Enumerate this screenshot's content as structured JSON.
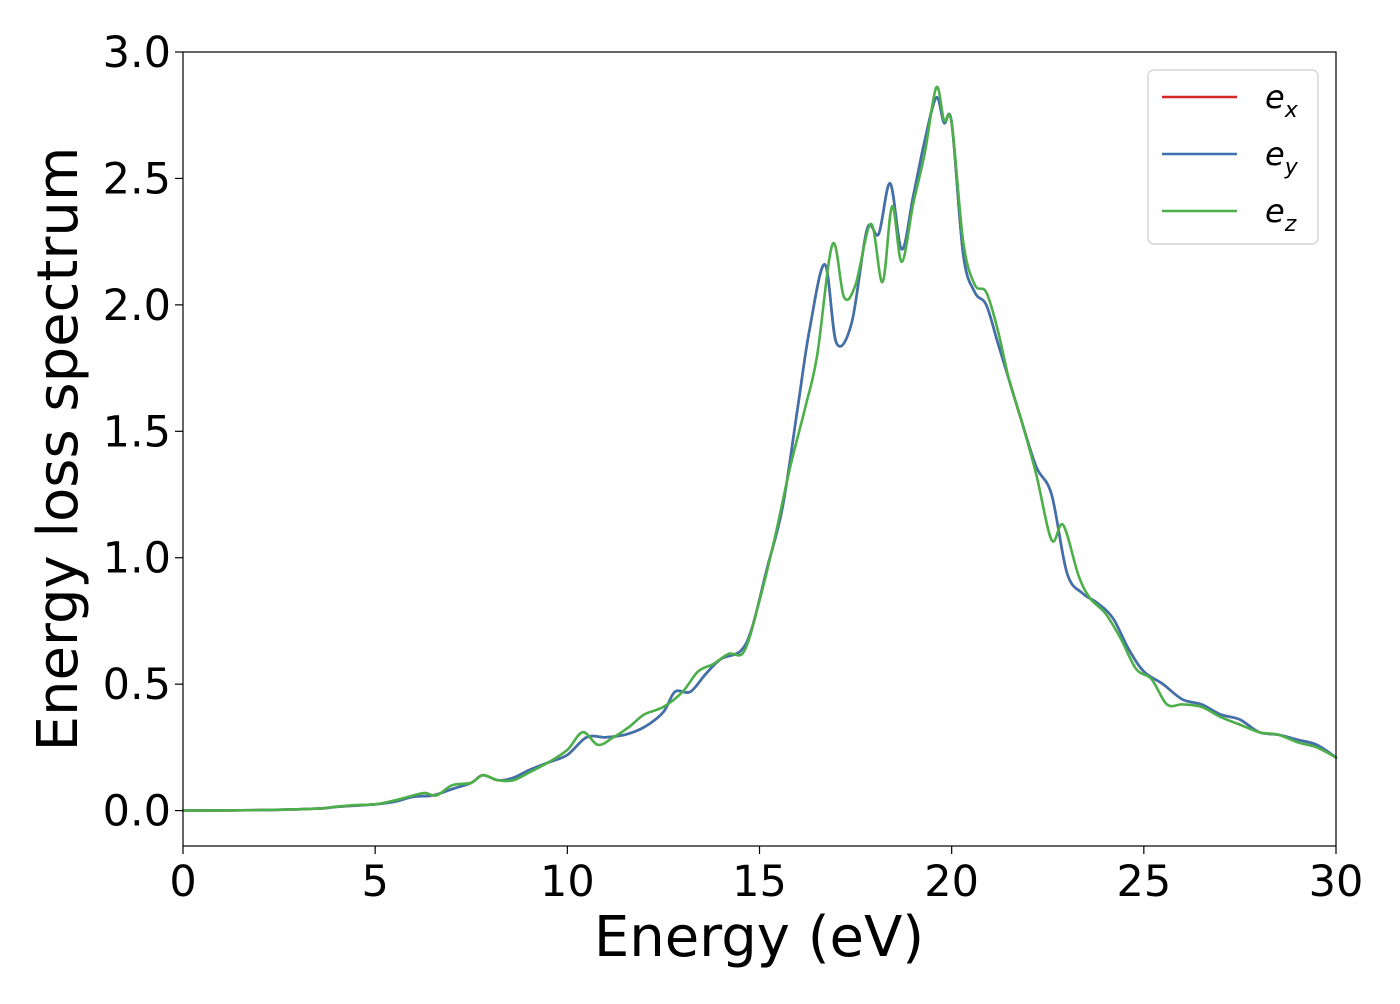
{
  "chart_data": {
    "type": "line",
    "title": "",
    "xlabel": "Energy (eV)",
    "ylabel": "Energy loss spectrum",
    "xlim": [
      0,
      30
    ],
    "ylim": [
      -0.14,
      3.0
    ],
    "grid": false,
    "legend_position": "top-right",
    "x_ticks": [
      0,
      5,
      10,
      15,
      20,
      25,
      30
    ],
    "x_tick_labels": [
      "0",
      "5",
      "10",
      "15",
      "20",
      "25",
      "30"
    ],
    "y_ticks": [
      0.0,
      0.5,
      1.0,
      1.5,
      2.0,
      2.5,
      3.0
    ],
    "y_tick_labels": [
      "0.0",
      "0.5",
      "1.0",
      "1.5",
      "2.0",
      "2.5",
      "3.0"
    ],
    "series": [
      {
        "name": "e_x",
        "label_base": "e",
        "label_sub": "x",
        "color": "#d62728",
        "x": [
          0,
          2,
          3.5,
          4.0,
          4.5,
          5.0,
          5.5,
          6.0,
          6.5,
          7.0,
          7.5,
          7.8,
          8.2,
          8.6,
          9.0,
          9.5,
          10.0,
          10.5,
          11.0,
          11.5,
          12.0,
          12.5,
          12.8,
          13.2,
          13.6,
          14.0,
          14.5,
          14.8,
          15.2,
          15.6,
          16.0,
          16.3,
          16.7,
          17.0,
          17.4,
          17.8,
          18.1,
          18.4,
          18.7,
          19.0,
          19.3,
          19.6,
          19.8,
          20.0,
          20.3,
          20.6,
          20.9,
          21.2,
          21.5,
          21.8,
          22.2,
          22.6,
          23.0,
          23.4,
          23.8,
          24.2,
          24.6,
          25.0,
          25.5,
          26.0,
          26.5,
          27.0,
          27.5,
          28.0,
          28.5,
          29.0,
          29.5,
          30.0
        ],
        "y": [
          0.0,
          0.002,
          0.008,
          0.015,
          0.02,
          0.025,
          0.035,
          0.055,
          0.06,
          0.085,
          0.11,
          0.14,
          0.12,
          0.13,
          0.16,
          0.19,
          0.22,
          0.29,
          0.29,
          0.3,
          0.33,
          0.39,
          0.47,
          0.47,
          0.54,
          0.6,
          0.63,
          0.72,
          0.96,
          1.2,
          1.6,
          1.9,
          2.16,
          1.85,
          1.93,
          2.3,
          2.28,
          2.48,
          2.22,
          2.43,
          2.65,
          2.82,
          2.72,
          2.72,
          2.2,
          2.05,
          2.0,
          1.85,
          1.7,
          1.55,
          1.36,
          1.25,
          0.94,
          0.86,
          0.82,
          0.76,
          0.64,
          0.55,
          0.5,
          0.44,
          0.42,
          0.38,
          0.36,
          0.31,
          0.3,
          0.28,
          0.26,
          0.21
        ]
      },
      {
        "name": "e_y",
        "label_base": "e",
        "label_sub": "y",
        "color": "#3d72ad",
        "x": [
          0,
          2,
          3.5,
          4.0,
          4.5,
          5.0,
          5.5,
          6.0,
          6.5,
          7.0,
          7.5,
          7.8,
          8.2,
          8.6,
          9.0,
          9.5,
          10.0,
          10.5,
          11.0,
          11.5,
          12.0,
          12.5,
          12.8,
          13.2,
          13.6,
          14.0,
          14.5,
          14.8,
          15.2,
          15.6,
          16.0,
          16.3,
          16.7,
          17.0,
          17.4,
          17.8,
          18.1,
          18.4,
          18.7,
          19.0,
          19.3,
          19.6,
          19.8,
          20.0,
          20.3,
          20.6,
          20.9,
          21.2,
          21.5,
          21.8,
          22.2,
          22.6,
          23.0,
          23.4,
          23.8,
          24.2,
          24.6,
          25.0,
          25.5,
          26.0,
          26.5,
          27.0,
          27.5,
          28.0,
          28.5,
          29.0,
          29.5,
          30.0
        ],
        "y": [
          0.0,
          0.002,
          0.008,
          0.015,
          0.02,
          0.025,
          0.035,
          0.055,
          0.06,
          0.085,
          0.11,
          0.14,
          0.12,
          0.13,
          0.16,
          0.19,
          0.22,
          0.29,
          0.29,
          0.3,
          0.33,
          0.39,
          0.47,
          0.47,
          0.54,
          0.6,
          0.63,
          0.72,
          0.96,
          1.2,
          1.6,
          1.9,
          2.16,
          1.85,
          1.93,
          2.3,
          2.28,
          2.48,
          2.22,
          2.43,
          2.65,
          2.82,
          2.72,
          2.72,
          2.2,
          2.05,
          2.0,
          1.85,
          1.7,
          1.55,
          1.36,
          1.25,
          0.94,
          0.86,
          0.82,
          0.76,
          0.64,
          0.55,
          0.5,
          0.44,
          0.42,
          0.38,
          0.36,
          0.31,
          0.3,
          0.28,
          0.26,
          0.21
        ]
      },
      {
        "name": "e_z",
        "label_base": "e",
        "label_sub": "z",
        "color": "#4daf4a",
        "x": [
          0,
          2,
          3.5,
          4.0,
          4.5,
          5.0,
          5.5,
          6.0,
          6.3,
          6.6,
          7.0,
          7.5,
          7.8,
          8.2,
          8.6,
          9.0,
          9.5,
          10.0,
          10.4,
          10.8,
          11.2,
          11.6,
          12.0,
          12.5,
          13.0,
          13.4,
          13.8,
          14.2,
          14.6,
          15.0,
          15.4,
          15.8,
          16.2,
          16.5,
          16.9,
          17.2,
          17.5,
          17.9,
          18.2,
          18.45,
          18.7,
          19.0,
          19.3,
          19.6,
          19.8,
          20.0,
          20.3,
          20.6,
          20.9,
          21.2,
          21.5,
          21.8,
          22.2,
          22.6,
          22.9,
          23.3,
          23.6,
          24.0,
          24.4,
          24.8,
          25.2,
          25.6,
          26.0,
          26.5,
          27.0,
          27.5,
          28.0,
          28.5,
          29.0,
          29.5,
          30.0
        ],
        "y": [
          0.0,
          0.002,
          0.008,
          0.016,
          0.022,
          0.025,
          0.04,
          0.06,
          0.07,
          0.06,
          0.1,
          0.11,
          0.14,
          0.12,
          0.12,
          0.15,
          0.19,
          0.24,
          0.31,
          0.26,
          0.29,
          0.33,
          0.38,
          0.41,
          0.47,
          0.55,
          0.58,
          0.62,
          0.63,
          0.83,
          1.08,
          1.36,
          1.6,
          1.8,
          2.24,
          2.03,
          2.08,
          2.32,
          2.09,
          2.39,
          2.17,
          2.4,
          2.6,
          2.86,
          2.73,
          2.72,
          2.25,
          2.08,
          2.05,
          1.9,
          1.7,
          1.55,
          1.33,
          1.07,
          1.13,
          0.93,
          0.84,
          0.78,
          0.68,
          0.56,
          0.52,
          0.42,
          0.42,
          0.41,
          0.37,
          0.34,
          0.31,
          0.3,
          0.27,
          0.25,
          0.21
        ]
      }
    ]
  }
}
